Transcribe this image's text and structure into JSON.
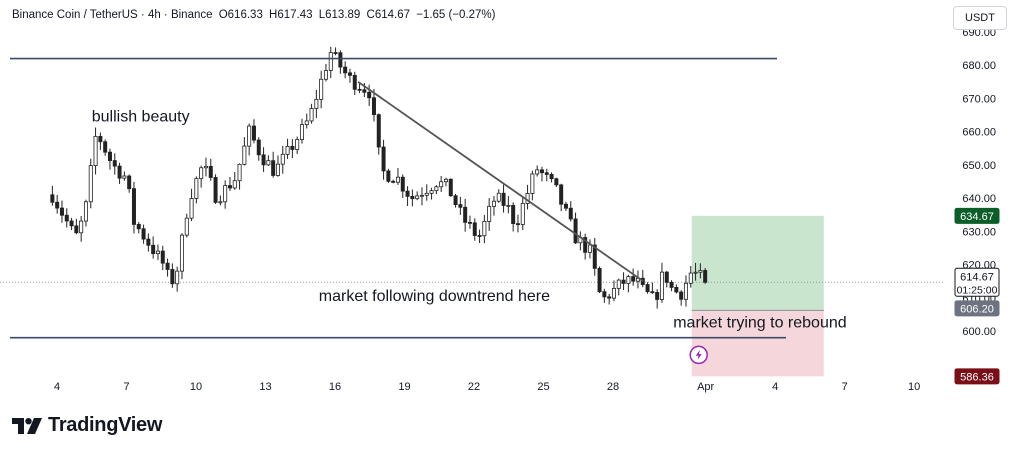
{
  "header": {
    "symbol": "Binance Coin / TetherUS · 4h · Binance",
    "open": "O616.33",
    "high": "H617.43",
    "low": "L613.89",
    "close": "C614.67",
    "change": "−1.65 (−0.27%)"
  },
  "unit_button": "USDT",
  "brand": "TradingView",
  "colors": {
    "candle": "#222222",
    "candle_up_fill": "#ffffff",
    "level_line": "#3f4a6b",
    "trendline": "#555555",
    "profit_zone": "#b7dcbc",
    "loss_zone": "#f2c9cf",
    "target_tag": "#0b5e28",
    "stop_tag": "#7a0f17",
    "entry_tag": "#6d7380",
    "lightning": "#9c27b0"
  },
  "chart_data": {
    "type": "candlestick",
    "title": "",
    "ylim": [
      588,
      690
    ],
    "y_ticks": [
      600,
      610,
      620,
      630,
      640,
      650,
      660,
      670,
      680,
      690
    ],
    "y_tick_labels": [
      "600.00",
      "610.00",
      "620.00",
      "630.00",
      "640.00",
      "650.00",
      "660.00",
      "670.00",
      "680.00",
      "690.00"
    ],
    "x_ticks": [
      {
        "label": "4",
        "day": 4
      },
      {
        "label": "7",
        "day": 7
      },
      {
        "label": "10",
        "day": 10
      },
      {
        "label": "13",
        "day": 13
      },
      {
        "label": "16",
        "day": 16
      },
      {
        "label": "19",
        "day": 19
      },
      {
        "label": "22",
        "day": 22
      },
      {
        "label": "25",
        "day": 25
      },
      {
        "label": "28",
        "day": 28
      },
      {
        "label": "Apr",
        "day": 32
      },
      {
        "label": "4",
        "day": 35
      },
      {
        "label": "7",
        "day": 38
      },
      {
        "label": "10",
        "day": 41
      }
    ],
    "x_start_day": 3.8,
    "x_end_day": 42.0,
    "candle_path": [
      [
        3.8,
        641
      ],
      [
        4.8,
        628
      ],
      [
        5.2,
        635
      ],
      [
        5.7,
        660
      ],
      [
        6.4,
        650
      ],
      [
        7.0,
        646
      ],
      [
        7.3,
        633
      ],
      [
        7.9,
        627
      ],
      [
        8.6,
        620
      ],
      [
        8.9,
        614
      ],
      [
        9.2,
        619
      ],
      [
        9.7,
        640
      ],
      [
        10.3,
        650
      ],
      [
        10.9,
        640
      ],
      [
        11.7,
        646
      ],
      [
        12.3,
        660
      ],
      [
        12.8,
        653
      ],
      [
        13.4,
        648
      ],
      [
        14.0,
        654
      ],
      [
        14.9,
        664
      ],
      [
        15.8,
        684
      ],
      [
        16.6,
        676
      ],
      [
        17.5,
        672
      ],
      [
        18.0,
        648
      ],
      [
        18.7,
        646
      ],
      [
        19.3,
        640
      ],
      [
        20.4,
        645
      ],
      [
        20.9,
        643
      ],
      [
        21.5,
        634
      ],
      [
        22.2,
        628
      ],
      [
        22.9,
        640
      ],
      [
        23.4,
        638
      ],
      [
        23.8,
        632
      ],
      [
        24.7,
        649
      ],
      [
        25.5,
        643
      ],
      [
        26.4,
        628
      ],
      [
        27.0,
        624
      ],
      [
        27.5,
        609
      ],
      [
        28.5,
        615
      ],
      [
        29.0,
        615
      ],
      [
        29.3,
        612
      ],
      [
        29.8,
        609
      ],
      [
        30.2,
        618
      ],
      [
        30.5,
        613
      ],
      [
        30.9,
        611
      ],
      [
        31.4,
        618
      ],
      [
        31.8,
        616
      ],
      [
        32.0,
        615
      ]
    ],
    "last_price": 614.67,
    "horizontal_levels": [
      682,
      598
    ],
    "trendline": {
      "from": [
        17.0,
        675
      ],
      "to": [
        29.3,
        615
      ]
    },
    "position": {
      "start_day": 31.4,
      "end_day": 37.1,
      "target": 634.67,
      "entry": 606.2,
      "stop": 586.36
    },
    "price_tags": {
      "target": "634.67",
      "last": "614.67",
      "countdown": "01:25:00",
      "entry": "606.20",
      "stop": "586.36"
    },
    "annotations": [
      {
        "text": "bullish beauty",
        "day": 5.5,
        "price": 663
      },
      {
        "text": "market following downtrend here",
        "day": 15.3,
        "price": 609
      },
      {
        "text": "market trying to rebound",
        "day": 30.6,
        "price": 601
      }
    ]
  }
}
